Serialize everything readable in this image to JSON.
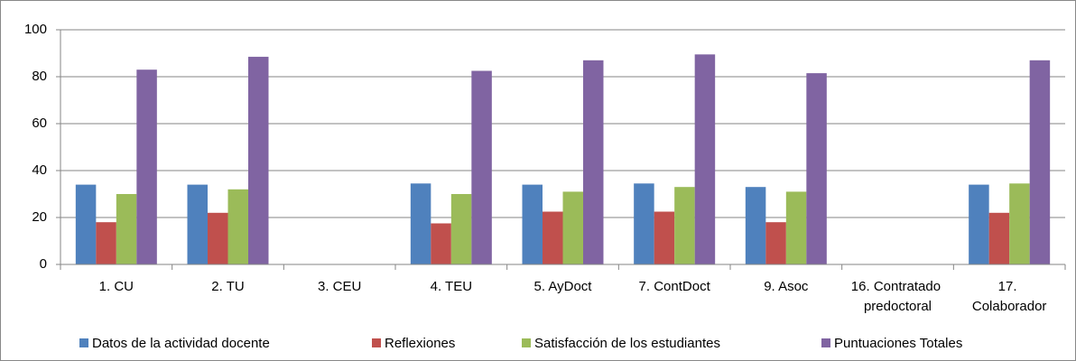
{
  "chart_data": {
    "type": "bar",
    "categories": [
      "1. CU",
      "2. TU",
      "3. CEU",
      "4. TEU",
      "5. AyDoct",
      "7. ContDoct",
      "9. Asoc",
      "16. Contratado predoctoral",
      "17. Colaborador"
    ],
    "series": [
      {
        "name": "Datos de la actividad docente",
        "color": "#4f81bd",
        "values": [
          34,
          34,
          null,
          34.5,
          34,
          34.5,
          33,
          null,
          34
        ]
      },
      {
        "name": "Reflexiones",
        "color": "#c0504d",
        "values": [
          18,
          22,
          null,
          17.5,
          22.5,
          22.5,
          18,
          null,
          22
        ]
      },
      {
        "name": "Satisfacción de los estudiantes",
        "color": "#9bbb59",
        "values": [
          30,
          32,
          null,
          30,
          31,
          33,
          31,
          null,
          34.5
        ]
      },
      {
        "name": "Puntuaciones Totales",
        "color": "#8064a2",
        "values": [
          83,
          88.5,
          null,
          82.5,
          87,
          89.5,
          81.5,
          null,
          87
        ]
      }
    ],
    "ylim": [
      0,
      100
    ],
    "yticks": [
      0,
      20,
      40,
      60,
      80,
      100
    ],
    "grid": true,
    "legend": "bottom"
  }
}
